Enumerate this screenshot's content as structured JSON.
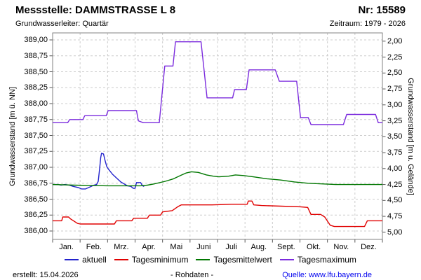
{
  "header": {
    "title": "Messstelle: DAMMSTRASSE L 8",
    "station_number": "Nr: 15589",
    "aquifer": "Grundwasserleiter: Quartär",
    "period": "Zeitraum: 1979 - 2026"
  },
  "chart_data": {
    "type": "line",
    "grid": "dashed",
    "legend_position": "bottom",
    "ylabel_left": "Grundwasserstand [m ü. NN]",
    "ylabel_right": "Grundwasserstand [m u. Gelände]",
    "ylim_left": [
      386.0,
      389.0
    ],
    "ylim_right_depth": [
      5.0,
      2.0
    ],
    "ground_elevation_m": 390.98,
    "yticks_left": [
      "389,00",
      "388,75",
      "388,50",
      "388,25",
      "388,00",
      "387,75",
      "387,50",
      "387,25",
      "387,00",
      "386,75",
      "386,50",
      "386,25",
      "386,00"
    ],
    "yticks_right": [
      "2,00",
      "2,25",
      "2,50",
      "2,75",
      "3,00",
      "3,25",
      "3,50",
      "3,75",
      "4,00",
      "4,25",
      "4,50",
      "4,75",
      "5,00"
    ],
    "x_categories": [
      "Jan.",
      "Feb.",
      "Mrz.",
      "Apr.",
      "Mai",
      "Juni",
      "Juli",
      "Aug.",
      "Sept.",
      "Okt.",
      "Nov.",
      "Dez."
    ],
    "x_unit": "month (0-12, one calendar year)",
    "series": [
      {
        "name": "aktuell",
        "color": "#2222CC",
        "points": [
          [
            0,
            386.73
          ],
          [
            0.2,
            386.73
          ],
          [
            0.3,
            386.72
          ],
          [
            0.45,
            386.73
          ],
          [
            0.6,
            386.72
          ],
          [
            0.75,
            386.7
          ],
          [
            0.95,
            386.68
          ],
          [
            1.05,
            386.66
          ],
          [
            1.2,
            386.66
          ],
          [
            1.35,
            386.69
          ],
          [
            1.5,
            386.72
          ],
          [
            1.6,
            386.73
          ],
          [
            1.66,
            386.78
          ],
          [
            1.71,
            386.98
          ],
          [
            1.75,
            387.15
          ],
          [
            1.78,
            387.22
          ],
          [
            1.85,
            387.21
          ],
          [
            1.9,
            387.12
          ],
          [
            1.97,
            387.01
          ],
          [
            2.05,
            386.96
          ],
          [
            2.18,
            386.89
          ],
          [
            2.33,
            386.83
          ],
          [
            2.48,
            386.77
          ],
          [
            2.6,
            386.74
          ],
          [
            2.72,
            386.71
          ],
          [
            2.85,
            386.7
          ],
          [
            2.93,
            386.67
          ],
          [
            3.0,
            386.67
          ],
          [
            3.05,
            386.76
          ],
          [
            3.2,
            386.76
          ],
          [
            3.27,
            386.71
          ],
          [
            3.33,
            386.7
          ]
        ]
      },
      {
        "name": "Tagesminimum",
        "color": "#E00000",
        "points": [
          [
            0,
            386.16
          ],
          [
            0.33,
            386.16
          ],
          [
            0.37,
            386.22
          ],
          [
            0.58,
            386.22
          ],
          [
            0.65,
            386.19
          ],
          [
            0.9,
            386.12
          ],
          [
            1.0,
            386.11
          ],
          [
            2.25,
            386.11
          ],
          [
            2.32,
            386.16
          ],
          [
            2.88,
            386.16
          ],
          [
            2.95,
            386.2
          ],
          [
            3.45,
            386.2
          ],
          [
            3.52,
            386.25
          ],
          [
            3.93,
            386.25
          ],
          [
            4.0,
            386.3
          ],
          [
            4.35,
            386.32
          ],
          [
            4.55,
            386.38
          ],
          [
            4.68,
            386.41
          ],
          [
            5.8,
            386.41
          ],
          [
            6.5,
            386.42
          ],
          [
            7.08,
            386.42
          ],
          [
            7.12,
            386.47
          ],
          [
            7.25,
            386.47
          ],
          [
            7.32,
            386.41
          ],
          [
            7.6,
            386.4
          ],
          [
            8.3,
            386.39
          ],
          [
            9.0,
            386.38
          ],
          [
            9.28,
            386.37
          ],
          [
            9.4,
            386.26
          ],
          [
            9.75,
            386.26
          ],
          [
            9.9,
            386.22
          ],
          [
            10.1,
            386.09
          ],
          [
            10.25,
            386.07
          ],
          [
            11.35,
            386.07
          ],
          [
            11.45,
            386.16
          ],
          [
            12,
            386.16
          ]
        ]
      },
      {
        "name": "Tagesmittelwert",
        "color": "#007700",
        "points": [
          [
            0,
            386.73
          ],
          [
            0.8,
            386.72
          ],
          [
            2.0,
            386.71
          ],
          [
            3.2,
            386.71
          ],
          [
            3.45,
            386.72
          ],
          [
            3.7,
            386.74
          ],
          [
            4.1,
            386.78
          ],
          [
            4.4,
            386.82
          ],
          [
            4.65,
            386.87
          ],
          [
            4.85,
            386.91
          ],
          [
            5.05,
            386.93
          ],
          [
            5.3,
            386.92
          ],
          [
            5.6,
            386.88
          ],
          [
            5.85,
            386.86
          ],
          [
            6.05,
            386.85
          ],
          [
            6.4,
            386.86
          ],
          [
            6.65,
            386.88
          ],
          [
            6.95,
            386.87
          ],
          [
            7.3,
            386.85
          ],
          [
            7.8,
            386.82
          ],
          [
            8.3,
            386.8
          ],
          [
            8.8,
            386.77
          ],
          [
            9.3,
            386.75
          ],
          [
            9.8,
            386.74
          ],
          [
            10.3,
            386.73
          ],
          [
            12,
            386.73
          ]
        ]
      },
      {
        "name": "Tagesmaximum",
        "color": "#7B2BDD",
        "points": [
          [
            0,
            387.7
          ],
          [
            0.55,
            387.7
          ],
          [
            0.62,
            387.75
          ],
          [
            1.1,
            387.75
          ],
          [
            1.17,
            387.81
          ],
          [
            1.95,
            387.81
          ],
          [
            2.02,
            387.89
          ],
          [
            3.05,
            387.89
          ],
          [
            3.12,
            387.73
          ],
          [
            3.3,
            387.7
          ],
          [
            3.88,
            387.7
          ],
          [
            4.08,
            388.59
          ],
          [
            4.38,
            388.59
          ],
          [
            4.47,
            388.97
          ],
          [
            5.4,
            388.97
          ],
          [
            5.62,
            388.09
          ],
          [
            6.55,
            388.09
          ],
          [
            6.62,
            388.22
          ],
          [
            7.05,
            388.22
          ],
          [
            7.15,
            388.53
          ],
          [
            8.1,
            388.53
          ],
          [
            8.25,
            388.35
          ],
          [
            8.88,
            388.35
          ],
          [
            9.02,
            387.78
          ],
          [
            9.3,
            387.78
          ],
          [
            9.4,
            387.67
          ],
          [
            10.58,
            387.67
          ],
          [
            10.7,
            387.83
          ],
          [
            11.75,
            387.83
          ],
          [
            11.85,
            387.7
          ],
          [
            12,
            387.7
          ]
        ]
      }
    ]
  },
  "legend": {
    "items": [
      {
        "label": "aktuell",
        "color": "#2222CC"
      },
      {
        "label": "Tagesminimum",
        "color": "#E00000"
      },
      {
        "label": "Tagesmittelwert",
        "color": "#007700"
      },
      {
        "label": "Tagesmaximum",
        "color": "#7B2BDD"
      }
    ]
  },
  "footer": {
    "created": "erstellt: 15.04.2026",
    "center": "- Rohdaten -",
    "source": "Quelle: www.lfu.bayern.de"
  },
  "colors": {
    "grid": "#CCCCCC",
    "plot_border": "#808080",
    "tick": "#555555",
    "link": "#0000EE"
  }
}
